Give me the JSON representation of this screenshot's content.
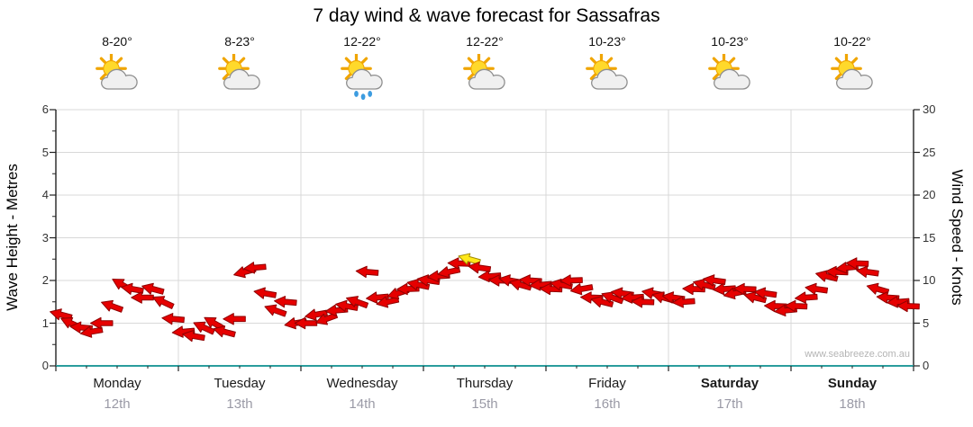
{
  "title": "7 day wind & wave forecast for Sassafras",
  "watermark": "www.seabreeze.com.au",
  "left_axis": {
    "label": "Wave Height - Metres",
    "ticks": [
      0,
      1,
      2,
      3,
      4,
      5,
      6
    ],
    "range": [
      0,
      6
    ]
  },
  "right_axis": {
    "label": "Wind Speed - Knots",
    "ticks": [
      0,
      5,
      10,
      15,
      20,
      25,
      30
    ],
    "range": [
      0,
      30
    ]
  },
  "days": [
    {
      "name": "Monday",
      "date": "12th",
      "temp": "8-20°",
      "icon": "sun-cloud",
      "bold": false
    },
    {
      "name": "Tuesday",
      "date": "13th",
      "temp": "8-23°",
      "icon": "sun-cloud",
      "bold": false
    },
    {
      "name": "Wednesday",
      "date": "14th",
      "temp": "12-22°",
      "icon": "sun-cloud-rain",
      "bold": false
    },
    {
      "name": "Thursday",
      "date": "15th",
      "temp": "12-22°",
      "icon": "sun-cloud",
      "bold": false
    },
    {
      "name": "Friday",
      "date": "16th",
      "temp": "10-23°",
      "icon": "sun-cloud",
      "bold": false
    },
    {
      "name": "Saturday",
      "date": "17th",
      "temp": "10-23°",
      "icon": "sun-cloud",
      "bold": true
    },
    {
      "name": "Sunday",
      "date": "18th",
      "temp": "10-22°",
      "icon": "sun-cloud",
      "bold": true
    }
  ],
  "chart_data": {
    "type": "scatter",
    "marker": "wind-direction-arrow",
    "title": "7 day wind & wave forecast for Sassafras",
    "categories": [
      "Monday 12th",
      "Tuesday 13th",
      "Wednesday 14th",
      "Thursday 15th",
      "Friday 16th",
      "Saturday 17th",
      "Sunday 18th"
    ],
    "points_per_day": 12,
    "ylabel_left": "Wave Height - Metres",
    "ylabel_right": "Wind Speed - Knots",
    "ylim_left": [
      0,
      6
    ],
    "ylim_right": [
      0,
      30
    ],
    "grid": true,
    "series": [
      {
        "name": "Wind speed (knots)",
        "values": [
          6,
          5,
          4.5,
          4,
          5,
          7,
          9.5,
          9,
          8,
          9,
          7.5,
          5.5,
          4,
          3.5,
          4.5,
          5,
          4,
          5.5,
          11,
          11.5,
          8.5,
          6.5,
          7.5,
          5,
          5,
          6,
          5.5,
          6.5,
          7,
          7.5,
          11,
          8,
          7.5,
          8.5,
          9,
          9.5,
          10,
          10.5,
          11,
          12,
          12.5,
          11.5,
          10.5,
          10,
          10,
          9.5,
          10,
          9.5,
          9,
          9.5,
          10,
          9,
          8,
          7.5,
          8,
          8.5,
          8,
          7.5,
          8.5,
          8,
          8,
          7.5,
          9,
          9.5,
          10,
          9,
          8.5,
          9,
          8,
          8.5,
          7,
          6.5,
          7,
          8,
          9,
          10.5,
          11,
          11.5,
          12,
          11,
          9,
          8,
          7.5,
          7
        ],
        "directions_deg": [
          195,
          205,
          185,
          170,
          180,
          200,
          210,
          190,
          180,
          195,
          205,
          185,
          175,
          190,
          205,
          210,
          195,
          180,
          165,
          175,
          190,
          200,
          185,
          170,
          180,
          170,
          160,
          175,
          190,
          200,
          185,
          175,
          168,
          162,
          178,
          192,
          188,
          176,
          168,
          182,
          196,
          188,
          176,
          182,
          190,
          196,
          184,
          176,
          182,
          190,
          178,
          170,
          182,
          194,
          200,
          188,
          176,
          182,
          190,
          196,
          188,
          176,
          182,
          194,
          188,
          176,
          168,
          182,
          194,
          188,
          182,
          174,
          182,
          176,
          188,
          194,
          182,
          174,
          182,
          188,
          196,
          184,
          176,
          182
        ],
        "highlight_index": 40,
        "colors": {
          "arrow": "#e60000",
          "outline": "#8f0000",
          "highlight": "#ffe81a",
          "highlight_outline": "#a08a00"
        }
      }
    ]
  },
  "colors": {
    "grid": "#d8d8d8",
    "axis": "#222222",
    "baseline": "#2a9d9d",
    "sun": "#ffd92b",
    "sun_ray": "#f0a500",
    "cloud": "#f0f0f0",
    "cloud_outline": "#8f8f8f",
    "rain": "#3c9ce0"
  }
}
